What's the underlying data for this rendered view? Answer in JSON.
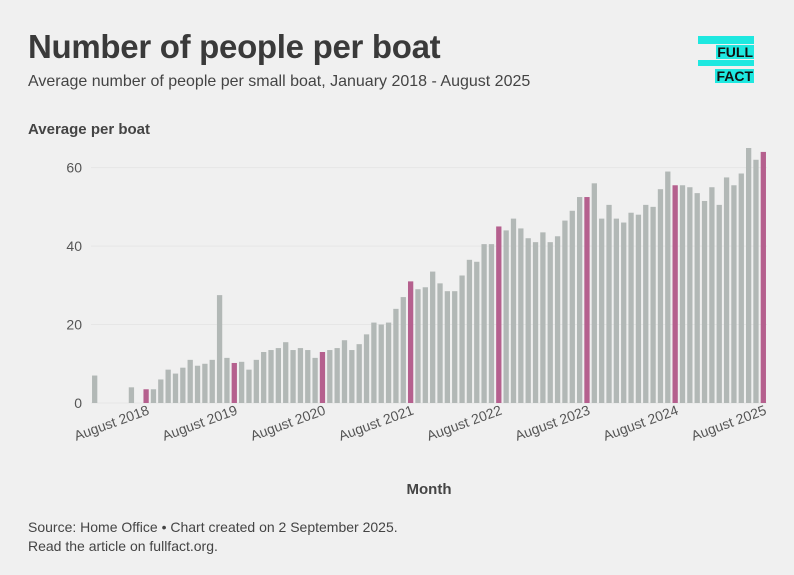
{
  "title": "Number of people per boat",
  "subtitle": "Average number of people per small boat, January 2018 - August 2025",
  "logo": {
    "line1": "FULL",
    "line2": "FACT"
  },
  "footer": {
    "source": "Source: Home Office • Chart created on 2 September 2025.",
    "read_more": "Read the article on fullfact.org."
  },
  "colors": {
    "bar": "#b2b8b6",
    "highlight": "#b5608e",
    "background": "#f0f0f0",
    "text": "#444444",
    "logo": "#1ee8e0"
  },
  "chart_data": {
    "type": "bar",
    "title": "Number of people per boat",
    "xlabel": "Month",
    "ylabel": "Average per boat",
    "ylim": [
      0,
      65
    ],
    "yticks": [
      0,
      20,
      40,
      60
    ],
    "start_month": "January 2018",
    "xtick_labels": [
      {
        "index": 7,
        "label": "August 2018"
      },
      {
        "index": 19,
        "label": "August 2019"
      },
      {
        "index": 31,
        "label": "August 2020"
      },
      {
        "index": 43,
        "label": "August 2021"
      },
      {
        "index": 55,
        "label": "August 2022"
      },
      {
        "index": 67,
        "label": "August 2023"
      },
      {
        "index": 79,
        "label": "August 2024"
      },
      {
        "index": 91,
        "label": "August 2025"
      }
    ],
    "highlighted_indices": [
      7,
      19,
      31,
      43,
      55,
      67,
      79,
      91
    ],
    "values": [
      7,
      null,
      null,
      null,
      null,
      4,
      null,
      3.5,
      3.5,
      6,
      8.5,
      7.5,
      9,
      11,
      9.5,
      10,
      11,
      27.5,
      11.5,
      10.2,
      10.5,
      8.5,
      11,
      13,
      13.5,
      14,
      15.5,
      13.5,
      14,
      13.5,
      11.5,
      13,
      13.5,
      14,
      16,
      13.5,
      15,
      17.5,
      20.5,
      20,
      20.5,
      24,
      27,
      31,
      29,
      29.5,
      33.5,
      30.5,
      28.5,
      28.5,
      32.5,
      36.5,
      36,
      40.5,
      40.5,
      45,
      44,
      47,
      44.5,
      42,
      41,
      43.5,
      41,
      42.5,
      46.5,
      49,
      52.5,
      52.5,
      56,
      47,
      50.5,
      47,
      46,
      48.5,
      48,
      50.5,
      50,
      54.5,
      59,
      55.5,
      55.5,
      55,
      53.5,
      51.5,
      55,
      50.5,
      57.5,
      55.5,
      58.5,
      65,
      62,
      64
    ]
  }
}
